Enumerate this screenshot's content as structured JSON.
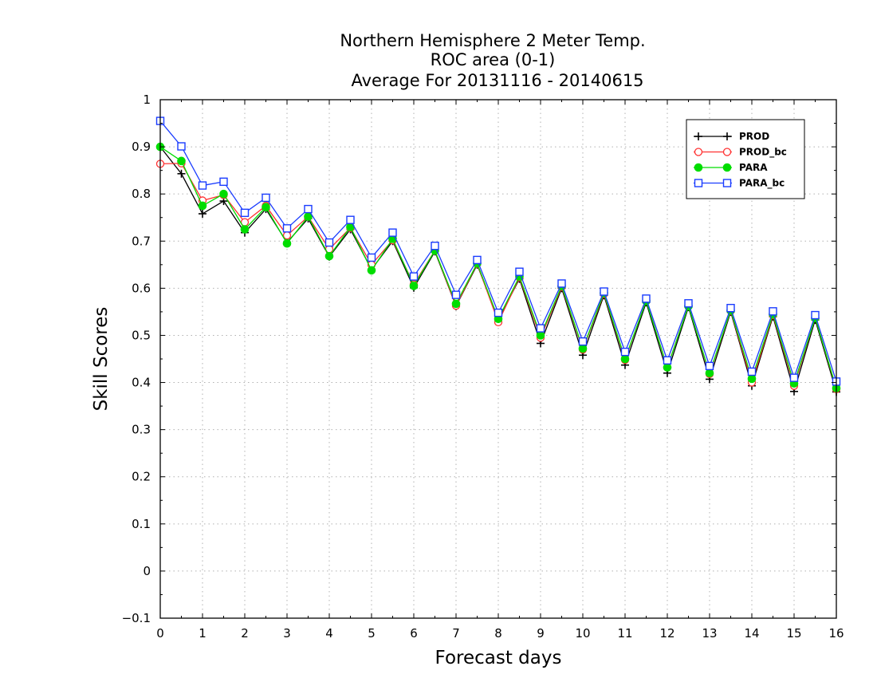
{
  "chart_data": {
    "type": "line",
    "title": [
      "Northern Hemisphere 2 Meter Temp.",
      "ROC area (0-1)",
      "Average For 20131116 - 20140615"
    ],
    "xlabel": "Forecast days",
    "ylabel": "Skill Scores",
    "xlim": [
      0,
      16
    ],
    "ylim": [
      -0.1,
      1
    ],
    "xticks": [
      "0",
      "1",
      "2",
      "3",
      "4",
      "5",
      "6",
      "7",
      "8",
      "9",
      "10",
      "11",
      "12",
      "13",
      "14",
      "15",
      "16"
    ],
    "yticks": [
      "−0.1",
      "0",
      "0.1",
      "0.2",
      "0.3",
      "0.4",
      "0.5",
      "0.6",
      "0.7",
      "0.8",
      "0.9",
      "1"
    ],
    "grid": true,
    "legend_position": "top-right",
    "x": [
      0,
      0.5,
      1,
      1.5,
      2,
      2.5,
      3,
      3.5,
      4,
      4.5,
      5,
      5.5,
      6,
      6.5,
      7,
      7.5,
      8,
      8.5,
      9,
      9.5,
      10,
      10.5,
      11,
      11.5,
      12,
      12.5,
      13,
      13.5,
      14,
      14.5,
      15,
      15.5,
      16
    ],
    "series": [
      {
        "name": "PROD",
        "color": "#000000",
        "marker": "plus",
        "values": [
          0.9,
          0.843,
          0.758,
          0.785,
          0.718,
          0.768,
          0.697,
          0.748,
          0.667,
          0.725,
          0.64,
          0.7,
          0.601,
          0.678,
          0.562,
          0.65,
          0.533,
          0.62,
          0.483,
          0.6,
          0.458,
          0.585,
          0.437,
          0.57,
          0.42,
          0.56,
          0.407,
          0.55,
          0.393,
          0.54,
          0.381,
          0.533,
          0.38
        ]
      },
      {
        "name": "PROD_bc",
        "color": "#ff3030",
        "marker": "open-circle",
        "values": [
          0.864,
          0.865,
          0.786,
          0.798,
          0.74,
          0.775,
          0.712,
          0.752,
          0.683,
          0.728,
          0.65,
          0.702,
          0.608,
          0.68,
          0.563,
          0.652,
          0.528,
          0.623,
          0.495,
          0.603,
          0.47,
          0.588,
          0.448,
          0.574,
          0.432,
          0.563,
          0.418,
          0.552,
          0.4,
          0.543,
          0.393,
          0.537,
          0.386
        ]
      },
      {
        "name": "PARA",
        "color": "#00dd00",
        "marker": "filled-circle",
        "values": [
          0.9,
          0.87,
          0.775,
          0.8,
          0.725,
          0.772,
          0.695,
          0.752,
          0.668,
          0.73,
          0.638,
          0.705,
          0.605,
          0.68,
          0.567,
          0.653,
          0.535,
          0.625,
          0.5,
          0.605,
          0.472,
          0.59,
          0.45,
          0.573,
          0.432,
          0.562,
          0.42,
          0.553,
          0.408,
          0.545,
          0.398,
          0.537,
          0.388
        ]
      },
      {
        "name": "PARA_bc",
        "color": "#1a3cff",
        "marker": "open-square",
        "values": [
          0.955,
          0.901,
          0.818,
          0.826,
          0.76,
          0.792,
          0.727,
          0.768,
          0.697,
          0.745,
          0.665,
          0.718,
          0.625,
          0.69,
          0.586,
          0.66,
          0.548,
          0.635,
          0.515,
          0.61,
          0.487,
          0.593,
          0.465,
          0.578,
          0.447,
          0.568,
          0.435,
          0.558,
          0.423,
          0.551,
          0.41,
          0.543,
          0.402
        ]
      }
    ]
  }
}
